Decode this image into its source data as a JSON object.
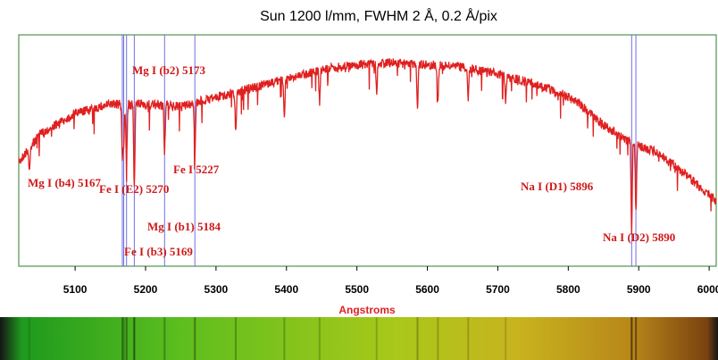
{
  "chart_data": {
    "type": "line",
    "title": "Sun 1200 l/mm, FWHM 2 Å, 0.2 Å/pix",
    "xlabel": "Angstroms",
    "ylabel": "",
    "xlim": [
      5020,
      6010
    ],
    "ylim": [
      0,
      1
    ],
    "x_ticks": [
      5100,
      5200,
      5300,
      5400,
      5500,
      5600,
      5700,
      5800,
      5900,
      6000
    ],
    "grid": false,
    "colors": {
      "spectrum": "#e02020",
      "line_markers": "#6f6fe0",
      "line_labels": "#d01818",
      "axis_title": "#e02020",
      "frame": "#2e7d2e"
    },
    "continuum": {
      "x": [
        5020,
        5050,
        5100,
        5150,
        5200,
        5250,
        5300,
        5350,
        5400,
        5450,
        5500,
        5550,
        5600,
        5650,
        5700,
        5750,
        5800,
        5820,
        5850,
        5880,
        5900,
        5920,
        5950,
        5980,
        6010
      ],
      "y": [
        0.47,
        0.59,
        0.68,
        0.72,
        0.72,
        0.71,
        0.75,
        0.79,
        0.83,
        0.87,
        0.89,
        0.9,
        0.89,
        0.88,
        0.85,
        0.81,
        0.75,
        0.71,
        0.63,
        0.57,
        0.54,
        0.52,
        0.46,
        0.38,
        0.3
      ]
    },
    "absorption_lines": [
      {
        "x": 5035,
        "depth": 0.1
      },
      {
        "x": 5167,
        "depth": 0.22
      },
      {
        "x": 5169,
        "depth": 0.18
      },
      {
        "x": 5173,
        "depth": 0.26
      },
      {
        "x": 5184,
        "depth": 0.36
      },
      {
        "x": 5227,
        "depth": 0.2
      },
      {
        "x": 5270,
        "depth": 0.24
      },
      {
        "x": 5328,
        "depth": 0.18
      },
      {
        "x": 5397,
        "depth": 0.15
      },
      {
        "x": 5447,
        "depth": 0.14
      },
      {
        "x": 5528,
        "depth": 0.13
      },
      {
        "x": 5586,
        "depth": 0.18
      },
      {
        "x": 5615,
        "depth": 0.14
      },
      {
        "x": 5658,
        "depth": 0.13
      },
      {
        "x": 5711,
        "depth": 0.1
      },
      {
        "x": 5890,
        "depth": 0.38
      },
      {
        "x": 5896,
        "depth": 0.3
      }
    ],
    "reference_lines": [
      {
        "label": "Mg I (b4) 5167",
        "x": 5167
      },
      {
        "label": "Fe I (b3) 5169",
        "x": 5169
      },
      {
        "label": "Mg I (b2) 5173",
        "x": 5173
      },
      {
        "label": "Mg I (b1) 5184",
        "x": 5184
      },
      {
        "label": "Fe I 5227",
        "x": 5227
      },
      {
        "label": "Fe I (E2) 5270",
        "x": 5270
      },
      {
        "label": "Na I (D2) 5890",
        "x": 5890
      },
      {
        "label": "Na I (D1) 5896",
        "x": 5896
      }
    ]
  },
  "spectrum_strip": {
    "stops": [
      "#151515",
      "#1e9a1e",
      "#5cbe1e",
      "#a8c81a",
      "#c8b41e",
      "#b8861a",
      "#7a4210",
      "#151515"
    ]
  }
}
